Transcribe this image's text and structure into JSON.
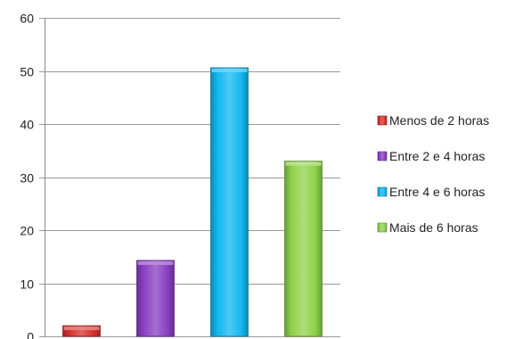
{
  "chart_data": {
    "type": "bar",
    "categories": [
      "Menos de 2 horas",
      "Entre 2 e 4 horas",
      "Entre 4 e 6 horas",
      "Mais de 6 horas"
    ],
    "values": [
      2,
      14.3,
      50.6,
      33
    ],
    "colors": [
      "#d9302c",
      "#8a3fc2",
      "#12b7f0",
      "#8fd24a"
    ],
    "ylim": [
      0,
      60
    ],
    "yticks": [
      0,
      10,
      20,
      30,
      40,
      50,
      60
    ],
    "grid": true,
    "legend": "right",
    "title": "",
    "xlabel": "",
    "ylabel": ""
  }
}
